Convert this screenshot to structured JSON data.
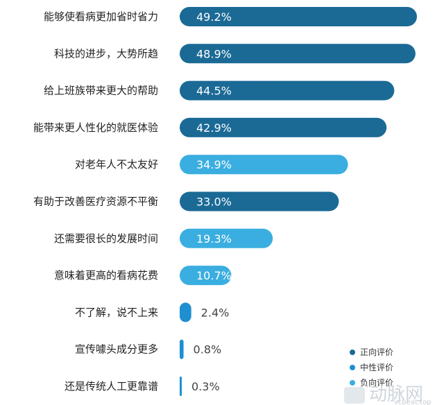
{
  "chart_data": {
    "type": "bar",
    "orientation": "horizontal",
    "categories": [
      "能够使看病更加省时省力",
      "科技的进步，大势所趋",
      "给上班族带来更大的帮助",
      "能带来更人性化的就医体验",
      "对老年人不太友好",
      "有助于改善医疗资源不平衡",
      "还需要很长的发展时间",
      "意味着更高的看病花费",
      "不了解，说不上来",
      "宣传噱头成分更多",
      "还是传统人工更靠谱"
    ],
    "values": [
      49.2,
      48.9,
      44.5,
      42.9,
      34.9,
      33.0,
      19.3,
      10.7,
      2.4,
      0.8,
      0.3
    ],
    "value_labels": [
      "49.2%",
      "48.9%",
      "44.5%",
      "42.9%",
      "34.9%",
      "33.0%",
      "19.3%",
      "10.7%",
      "2.4%",
      "0.8%",
      "0.3%"
    ],
    "groups": [
      "positive",
      "positive",
      "positive",
      "positive",
      "negative",
      "positive",
      "negative",
      "negative",
      "neutral",
      "neutral",
      "neutral"
    ],
    "legend": [
      {
        "key": "positive",
        "label": "正向评价",
        "color": "#1b6a96"
      },
      {
        "key": "neutral",
        "label": "中性评价",
        "color": "#1e8fd0"
      },
      {
        "key": "negative",
        "label": "负向评价",
        "color": "#3aaee0"
      }
    ],
    "legend_position": "bottom-right",
    "grid": false,
    "xlim": [
      0,
      50
    ],
    "title": "",
    "xlabel": "",
    "ylabel": ""
  },
  "watermark": {
    "text": "动脉网",
    "url": "vcbeat.top"
  }
}
